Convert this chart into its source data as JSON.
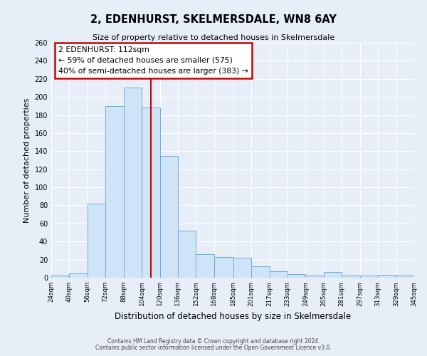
{
  "title": "2, EDENHURST, SKELMERSDALE, WN8 6AY",
  "subtitle": "Size of property relative to detached houses in Skelmersdale",
  "xlabel": "Distribution of detached houses by size in Skelmersdale",
  "ylabel": "Number of detached properties",
  "bar_edges": [
    24,
    40,
    56,
    72,
    88,
    104,
    120,
    136,
    152,
    168,
    185,
    201,
    217,
    233,
    249,
    265,
    281,
    297,
    313,
    329,
    345
  ],
  "bar_heights": [
    2,
    5,
    82,
    190,
    210,
    188,
    135,
    52,
    26,
    23,
    22,
    13,
    7,
    4,
    2,
    6,
    2,
    2,
    3,
    2
  ],
  "bar_face_color": "#d0e4f7",
  "bar_edge_color": "#6aaed6",
  "property_line_x": 112,
  "property_line_color": "#cc0000",
  "annotation_title": "2 EDENHURST: 112sqm",
  "annotation_line1": "← 59% of detached houses are smaller (575)",
  "annotation_line2": "40% of semi-detached houses are larger (383) →",
  "annotation_box_color": "#cc0000",
  "ylim": [
    0,
    260
  ],
  "yticks": [
    0,
    20,
    40,
    60,
    80,
    100,
    120,
    140,
    160,
    180,
    200,
    220,
    240,
    260
  ],
  "tick_labels": [
    "24sqm",
    "40sqm",
    "56sqm",
    "72sqm",
    "88sqm",
    "104sqm",
    "120sqm",
    "136sqm",
    "152sqm",
    "168sqm",
    "185sqm",
    "201sqm",
    "217sqm",
    "233sqm",
    "249sqm",
    "265sqm",
    "281sqm",
    "297sqm",
    "313sqm",
    "329sqm",
    "345sqm"
  ],
  "footer_line1": "Contains HM Land Registry data © Crown copyright and database right 2024.",
  "footer_line2": "Contains public sector information licensed under the Open Government Licence v3.0.",
  "bg_color": "#e8eef8",
  "plot_bg_color": "#e8eef8",
  "grid_color": "#ffffff"
}
